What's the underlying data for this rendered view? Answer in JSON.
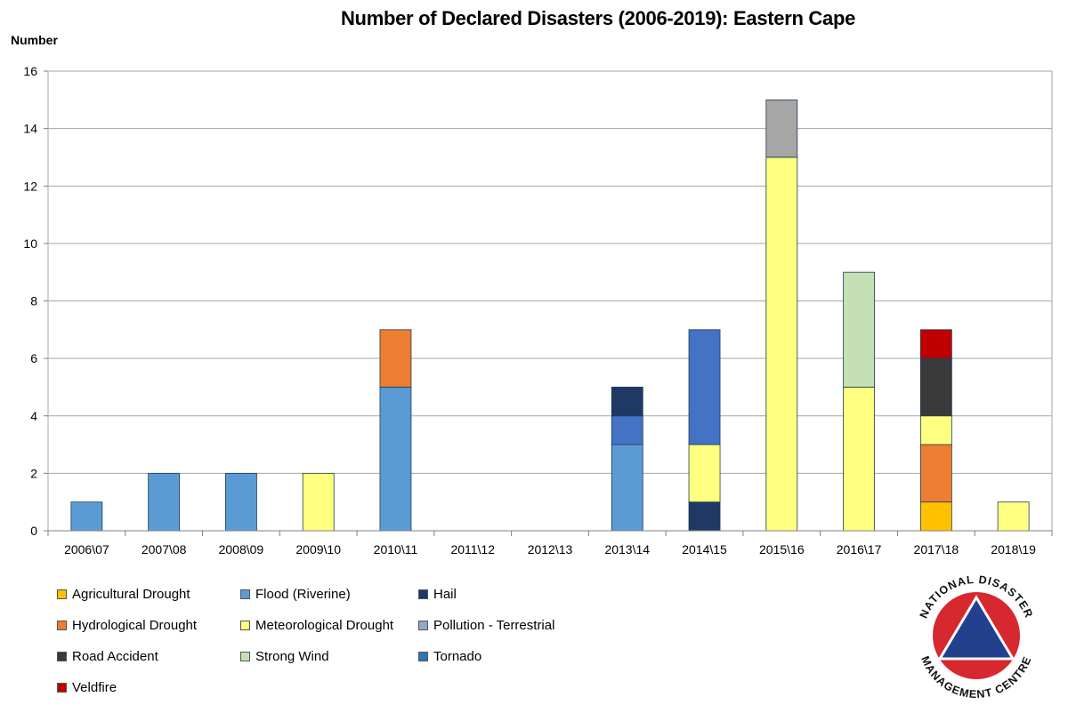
{
  "chart_data": {
    "type": "bar",
    "stacked": true,
    "title": "Number of Declared Disasters (2006-2019): Eastern Cape",
    "ylabel": "Number",
    "xlabel": "",
    "ylim": [
      0,
      16
    ],
    "yticks": [
      0,
      2,
      4,
      6,
      8,
      10,
      12,
      14,
      16
    ],
    "grid": true,
    "legend_position": "bottom-left",
    "categories": [
      "2006\\07",
      "2007\\08",
      "2008\\09",
      "2009\\10",
      "2010\\11",
      "2011\\12",
      "2012\\13",
      "2013\\14",
      "2014\\15",
      "2015\\16",
      "2016\\17",
      "2017\\18",
      "2018\\19"
    ],
    "series": [
      {
        "name": "Agricultural Drought",
        "color": "#FFC000",
        "values": [
          0,
          0,
          0,
          0,
          0,
          0,
          0,
          0,
          0,
          0,
          0,
          1,
          0
        ]
      },
      {
        "name": "Hail",
        "color": "#1F3864",
        "values": [
          0,
          0,
          0,
          0,
          0,
          0,
          0,
          0,
          1,
          0,
          0,
          0,
          0
        ]
      },
      {
        "name": "Flood (Riverine)",
        "color": "#5B9BD5",
        "values": [
          1,
          2,
          2,
          0,
          5,
          0,
          0,
          3,
          0,
          0,
          0,
          0,
          0
        ]
      },
      {
        "name": "Hydrological Drought",
        "color": "#ED7D31",
        "values": [
          0,
          0,
          0,
          0,
          2,
          0,
          0,
          0,
          0,
          0,
          0,
          2,
          0
        ]
      },
      {
        "name": "Meteorological Drought",
        "color": "#FFFF80",
        "values": [
          0,
          0,
          0,
          2,
          0,
          0,
          0,
          0,
          2,
          13,
          5,
          1,
          1
        ]
      },
      {
        "name": "Road Accident",
        "color": "#3A3A3A",
        "values": [
          0,
          0,
          0,
          0,
          0,
          0,
          0,
          0,
          0,
          0,
          0,
          2,
          0
        ]
      },
      {
        "name": "Veldfire",
        "color": "#C00000",
        "values": [
          0,
          0,
          0,
          0,
          0,
          0,
          0,
          0,
          0,
          0,
          0,
          1,
          0
        ]
      },
      {
        "name": "Strong Wind",
        "color": "#C5E0B4",
        "values": [
          0,
          0,
          0,
          0,
          0,
          0,
          0,
          0,
          0,
          0,
          4,
          0,
          0
        ]
      },
      {
        "name": "Pollution - Terrestrial",
        "color": "#A6A6A6",
        "values": [
          0,
          0,
          0,
          0,
          0,
          0,
          0,
          0,
          0,
          2,
          0,
          0,
          0
        ]
      },
      {
        "name": "Tornado",
        "color": "#4472C4",
        "values": [
          0,
          0,
          0,
          0,
          0,
          0,
          0,
          1,
          4,
          0,
          0,
          0,
          0
        ]
      },
      {
        "name": "Hail (top)",
        "color": "#1F3864",
        "values": [
          0,
          0,
          0,
          0,
          0,
          0,
          0,
          1,
          0,
          0,
          0,
          0,
          0
        ],
        "legend_hidden": true
      }
    ],
    "legend_entries": [
      {
        "name": "Agricultural Drought",
        "color": "#FFC000"
      },
      {
        "name": "Flood (Riverine)",
        "color": "#5B9BD5"
      },
      {
        "name": "Hail",
        "color": "#1F3864"
      },
      {
        "name": "Hydrological Drought",
        "color": "#ED7D31"
      },
      {
        "name": "Meteorological Drought",
        "color": "#FFFF80"
      },
      {
        "name": "Pollution - Terrestrial",
        "color": "#8EA9C1"
      },
      {
        "name": "Road Accident",
        "color": "#3A3A3A"
      },
      {
        "name": "Strong Wind",
        "color": "#C5E0B4"
      },
      {
        "name": "Tornado",
        "color": "#2E75B6"
      },
      {
        "name": "Veldfire",
        "color": "#C00000"
      }
    ]
  },
  "logo": {
    "text": "NATIONAL DISASTER MANAGEMENT CENTRE",
    "ring_color": "#D7272F",
    "triangle_color": "#23408E"
  }
}
